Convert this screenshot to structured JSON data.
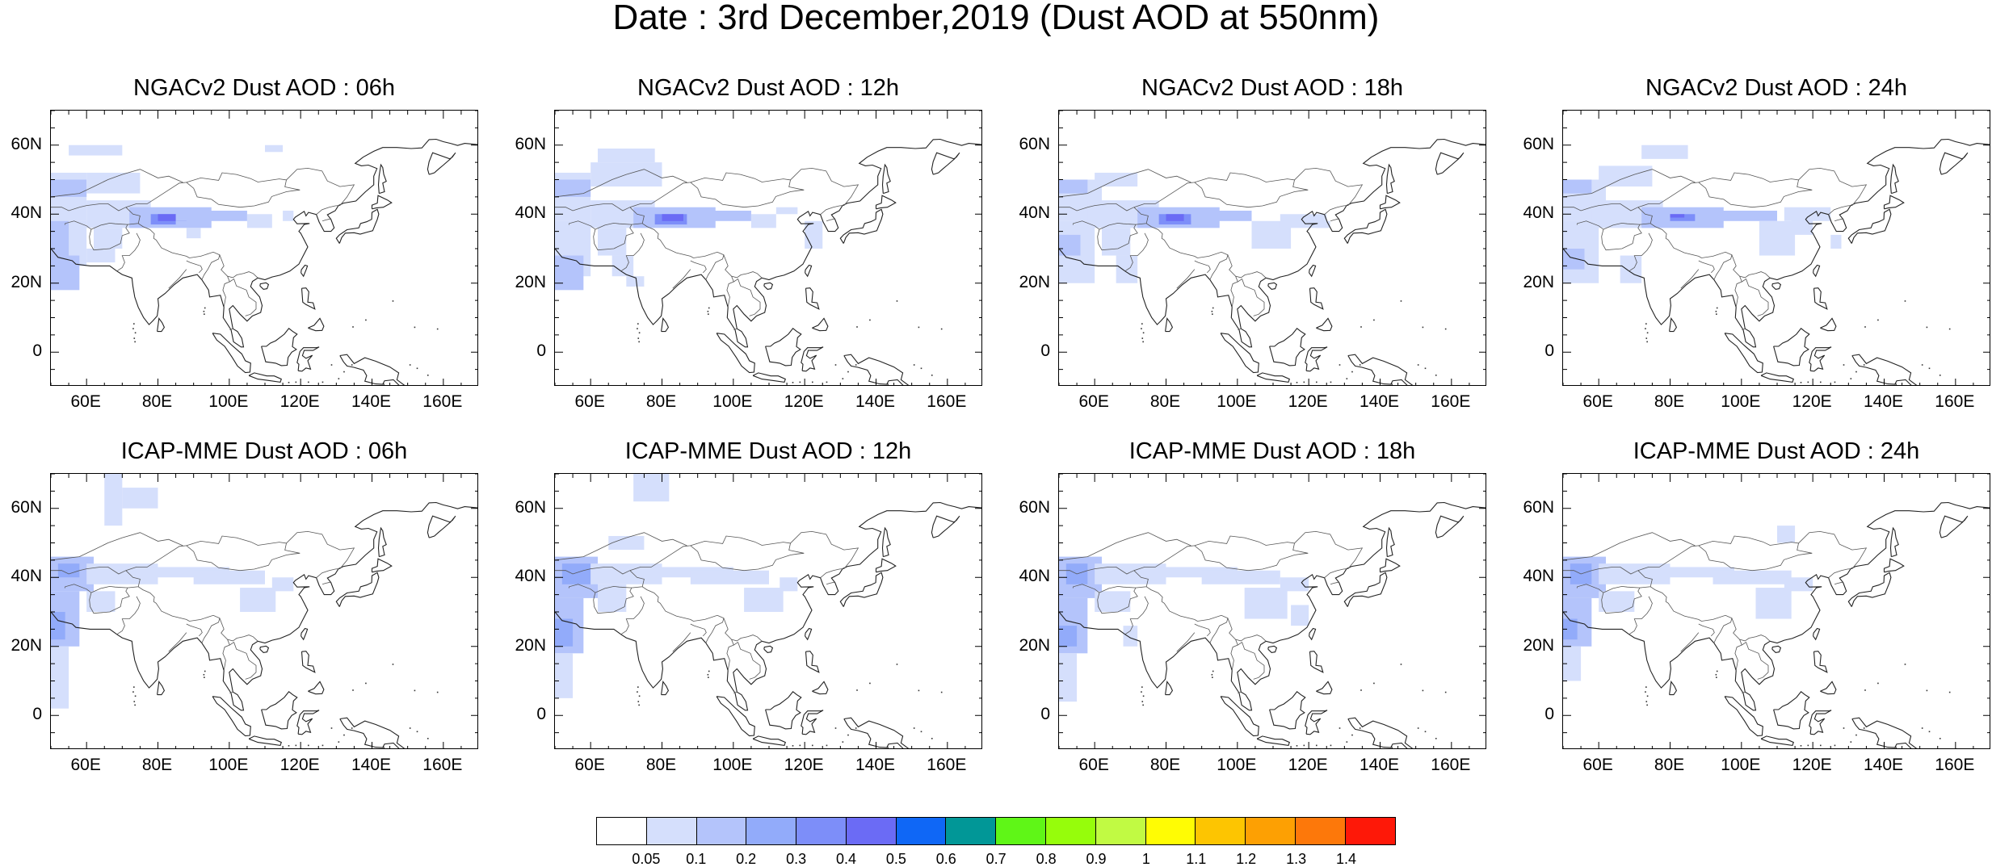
{
  "title": "Date : 3rd December,2019 (Dust AOD at 550nm)",
  "panels": [
    {
      "title": "NGACv2 Dust AOD : 06h",
      "model": "NGACv2",
      "hour": "06h"
    },
    {
      "title": "NGACv2 Dust AOD : 12h",
      "model": "NGACv2",
      "hour": "12h"
    },
    {
      "title": "NGACv2 Dust AOD : 18h",
      "model": "NGACv2",
      "hour": "18h"
    },
    {
      "title": "NGACv2 Dust AOD : 24h",
      "model": "NGACv2",
      "hour": "24h"
    },
    {
      "title": "ICAP-MME Dust AOD : 06h",
      "model": "ICAP-MME",
      "hour": "06h"
    },
    {
      "title": "ICAP-MME Dust AOD : 12h",
      "model": "ICAP-MME",
      "hour": "12h"
    },
    {
      "title": "ICAP-MME Dust AOD : 18h",
      "model": "ICAP-MME",
      "hour": "18h"
    },
    {
      "title": "ICAP-MME Dust AOD : 24h",
      "model": "ICAP-MME",
      "hour": "24h"
    }
  ],
  "axes": {
    "lat_labels": [
      "60N",
      "40N",
      "20N",
      "0"
    ],
    "lat_values": [
      60,
      40,
      20,
      0
    ],
    "lat_range": [
      -10,
      70
    ],
    "lon_labels": [
      "60E",
      "80E",
      "100E",
      "120E",
      "140E",
      "160E"
    ],
    "lon_values": [
      60,
      80,
      100,
      120,
      140,
      160
    ],
    "lon_range": [
      50,
      170
    ]
  },
  "colorbar": {
    "labels": [
      "0.05",
      "0.1",
      "0.2",
      "0.3",
      "0.4",
      "0.5",
      "0.6",
      "0.7",
      "0.8",
      "0.9",
      "1",
      "1.1",
      "1.2",
      "1.3",
      "1.4"
    ],
    "colors": [
      "#ffffff",
      "#d5dffc",
      "#b4c4fb",
      "#92abfa",
      "#7d8ef9",
      "#6b6bf5",
      "#0f67f6",
      "#019797",
      "#5ff617",
      "#96fd0b",
      "#c1fa43",
      "#fffc04",
      "#fdc501",
      "#fda003",
      "#fd780a",
      "#fe1808"
    ]
  }
}
